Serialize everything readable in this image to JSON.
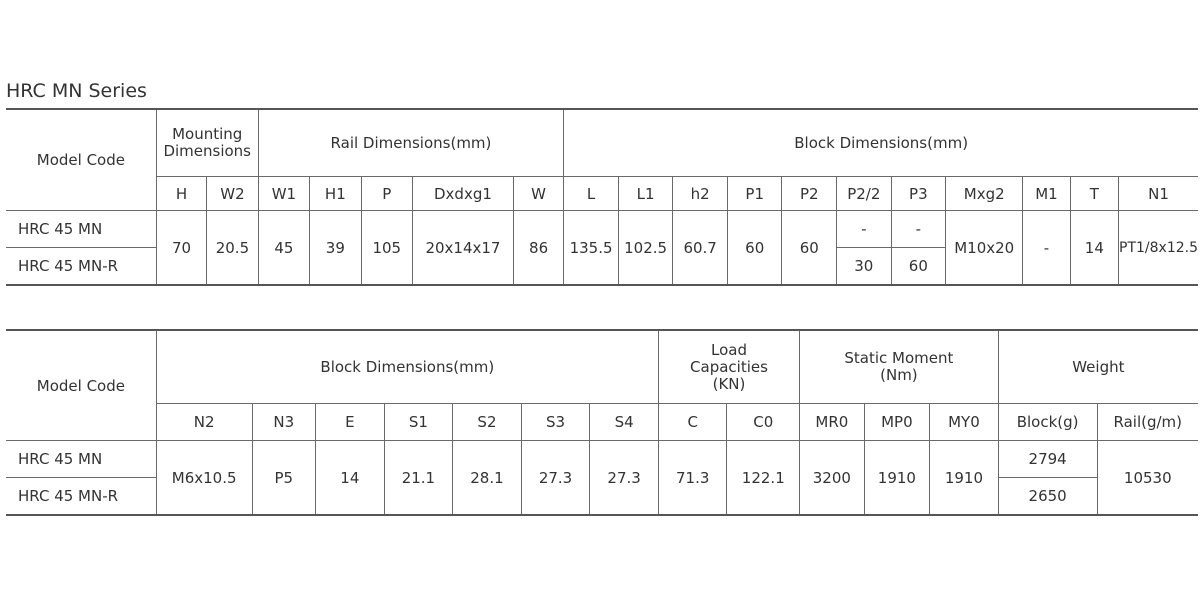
{
  "title": "HRC MN Series",
  "table1": {
    "model_code": "Model Code",
    "groups": {
      "mounting": "Mounting Dimensions",
      "rail": "Rail Dimensions(mm)",
      "block": "Block Dimensions(mm)"
    },
    "columns": [
      "H",
      "W2",
      "W1",
      "H1",
      "P",
      "Dxdxg1",
      "W",
      "L",
      "L1",
      "h2",
      "P1",
      "P2",
      "P2/2",
      "P3",
      "Mxg2",
      "M1",
      "T",
      "N1"
    ],
    "models": [
      "HRC 45 MN",
      "HRC 45 MN-R"
    ],
    "shared": {
      "H": "70",
      "W2": "20.5",
      "W1": "45",
      "H1": "39",
      "P": "105",
      "Dxdxg1": "20x14x17",
      "W": "86",
      "L": "135.5",
      "L1": "102.5",
      "h2": "60.7",
      "P1": "60",
      "P2": "60",
      "Mxg2": "M10x20",
      "M1": "-",
      "T": "14",
      "N1": "PT1/8x12.5"
    },
    "row1": {
      "P2_2": "-",
      "P3": "-"
    },
    "row2": {
      "P2_2": "30",
      "P3": "60"
    }
  },
  "table2": {
    "model_code": "Model Code",
    "groups": {
      "block": "Block Dimensions(mm)",
      "load": "Load Capacities (KN)",
      "static": "Static Moment (Nm)",
      "weight": "Weight"
    },
    "columns": [
      "N2",
      "N3",
      "E",
      "S1",
      "S2",
      "S3",
      "S4",
      "C",
      "C0",
      "MR0",
      "MP0",
      "MY0",
      "Block(g)",
      "Rail(g/m)"
    ],
    "models": [
      "HRC 45 MN",
      "HRC 45 MN-R"
    ],
    "shared": {
      "N2": "M6x10.5",
      "N3": "P5",
      "E": "14",
      "S1": "21.1",
      "S2": "28.1",
      "S3": "27.3",
      "S4": "27.3",
      "C": "71.3",
      "C0": "122.1",
      "MR0": "3200",
      "MP0": "1910",
      "MY0": "1910",
      "rail": "10530"
    },
    "row1": {
      "block_g": "2794"
    },
    "row2": {
      "block_g": "2650"
    }
  }
}
